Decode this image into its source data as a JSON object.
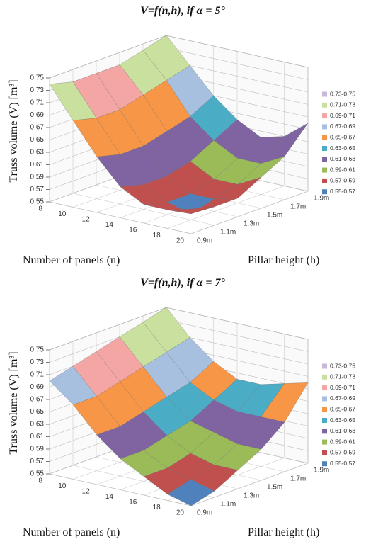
{
  "chart_data": [
    {
      "type": "surface",
      "title": "V=f(n,h), if α = 5°",
      "z_label": "Truss volume (V) [m³]",
      "x_label": "Number of panels (n)",
      "y_label": "Pillar height (h)",
      "x": [
        8,
        10,
        12,
        14,
        16,
        18,
        20
      ],
      "y": [
        "0.9m",
        "1.1m",
        "1.3m",
        "1.5m",
        "1.7m",
        "1.9m"
      ],
      "z": [
        [
          0.74,
          0.73,
          0.73,
          0.73,
          0.74,
          0.75
        ],
        [
          0.69,
          0.68,
          0.68,
          0.69,
          0.7,
          0.71
        ],
        [
          0.64,
          0.63,
          0.63,
          0.64,
          0.65,
          0.67
        ],
        [
          0.6,
          0.59,
          0.59,
          0.6,
          0.62,
          0.64
        ],
        [
          0.58,
          0.57,
          0.57,
          0.58,
          0.6,
          0.62
        ],
        [
          0.58,
          0.56,
          0.57,
          0.58,
          0.6,
          0.63
        ],
        [
          0.59,
          0.58,
          0.58,
          0.6,
          0.62,
          0.66
        ]
      ],
      "zlim": [
        0.55,
        0.75
      ],
      "zticks": [
        0.55,
        0.57,
        0.59,
        0.61,
        0.63,
        0.65,
        0.67,
        0.69,
        0.71,
        0.73,
        0.75
      ],
      "bands": [
        {
          "label": "0.55-0.57",
          "color": "#4f81bd"
        },
        {
          "label": "0.57-0.59",
          "color": "#c0504d"
        },
        {
          "label": "0.59-0.61",
          "color": "#9bbb59"
        },
        {
          "label": "0.61-0.63",
          "color": "#8064a2"
        },
        {
          "label": "0.63-0.65",
          "color": "#4bacc6"
        },
        {
          "label": "0.65-0.67",
          "color": "#f79646"
        },
        {
          "label": "0.67-0.69",
          "color": "#a7c0e0"
        },
        {
          "label": "0.69-0.71",
          "color": "#f4a6a4"
        },
        {
          "label": "0.71-0.73",
          "color": "#c9e09f"
        },
        {
          "label": "0.73-0.75",
          "color": "#c7b8dc"
        }
      ]
    },
    {
      "type": "surface",
      "title": "V=f(n,h), if α = 7°",
      "z_label": "Truss volume (V) [m³]",
      "x_label": "Number of panels (n)",
      "y_label": "Pillar height (h)",
      "x": [
        8,
        10,
        12,
        14,
        16,
        18,
        20
      ],
      "y": [
        "0.9m",
        "1.1m",
        "1.3m",
        "1.5m",
        "1.7m",
        "1.9m"
      ],
      "z": [
        [
          0.7,
          0.71,
          0.72,
          0.73,
          0.74,
          0.75
        ],
        [
          0.67,
          0.67,
          0.68,
          0.69,
          0.7,
          0.71
        ],
        [
          0.63,
          0.63,
          0.64,
          0.65,
          0.66,
          0.68
        ],
        [
          0.6,
          0.6,
          0.61,
          0.62,
          0.64,
          0.66
        ],
        [
          0.58,
          0.58,
          0.59,
          0.61,
          0.63,
          0.66
        ],
        [
          0.56,
          0.57,
          0.58,
          0.6,
          0.63,
          0.67
        ],
        [
          0.55,
          0.56,
          0.58,
          0.6,
          0.63,
          0.68
        ]
      ],
      "zlim": [
        0.55,
        0.75
      ],
      "zticks": [
        0.55,
        0.57,
        0.59,
        0.61,
        0.63,
        0.65,
        0.67,
        0.69,
        0.71,
        0.73,
        0.75
      ],
      "bands": [
        {
          "label": "0.55-0.57",
          "color": "#4f81bd"
        },
        {
          "label": "0.57-0.59",
          "color": "#c0504d"
        },
        {
          "label": "0.59-0.61",
          "color": "#9bbb59"
        },
        {
          "label": "0.61-0.63",
          "color": "#8064a2"
        },
        {
          "label": "0.63-0.65",
          "color": "#4bacc6"
        },
        {
          "label": "0.65-0.67",
          "color": "#f79646"
        },
        {
          "label": "0.67-0.69",
          "color": "#a7c0e0"
        },
        {
          "label": "0.69-0.71",
          "color": "#f4a6a4"
        },
        {
          "label": "0.71-0.73",
          "color": "#c9e09f"
        },
        {
          "label": "0.73-0.75",
          "color": "#c7b8dc"
        }
      ]
    }
  ]
}
